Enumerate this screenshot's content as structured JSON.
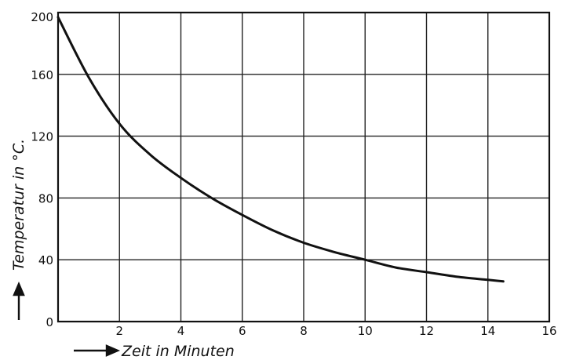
{
  "chart_data": {
    "type": "line",
    "title": "",
    "xlabel": "Zeit in Minuten",
    "ylabel": "Temperatur in °C.",
    "xlim": [
      0,
      16
    ],
    "ylim": [
      0,
      200
    ],
    "x_ticks": [
      "2",
      "4",
      "6",
      "8",
      "10",
      "12",
      "14",
      "16"
    ],
    "y_ticks": [
      "0",
      "40",
      "80",
      "120",
      "160",
      "200"
    ],
    "grid": true,
    "series": [
      {
        "x": [
          0,
          1,
          2,
          3,
          4,
          5,
          6,
          7,
          8,
          9,
          10,
          11,
          12,
          13,
          14,
          14.5
        ],
        "values": [
          197,
          158,
          128,
          108,
          93,
          80,
          69,
          59,
          51,
          45,
          40,
          35,
          32,
          29,
          27,
          26
        ]
      }
    ]
  }
}
